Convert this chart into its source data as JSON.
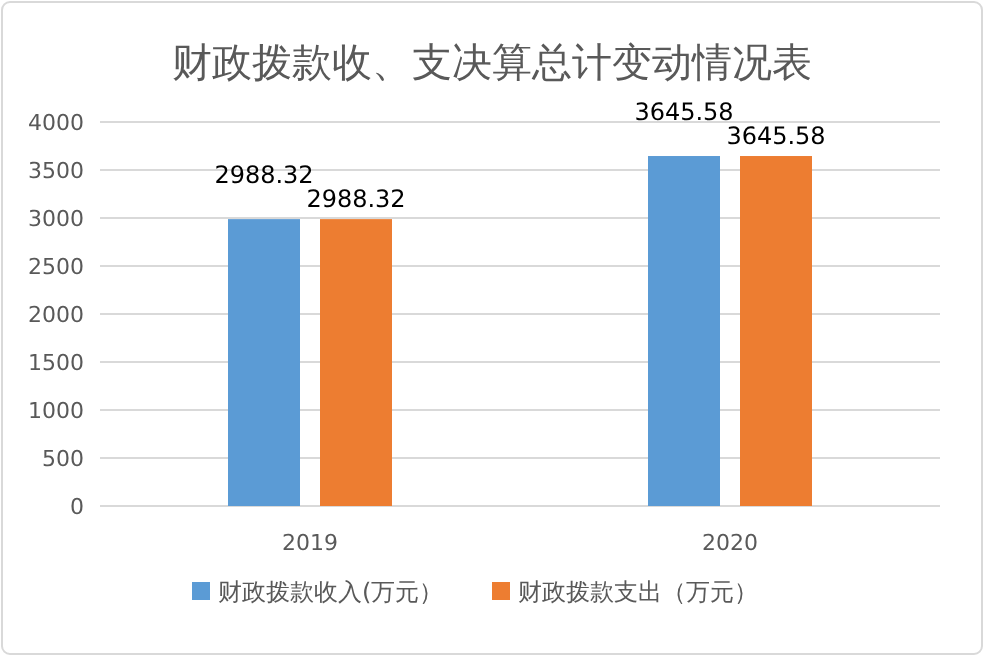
{
  "chart_data": {
    "type": "bar",
    "title": "财政拨款收、支决算总计变动情况表",
    "categories": [
      "2019",
      "2020"
    ],
    "series": [
      {
        "name": "财政拨款收入(万元）",
        "color": "#5b9bd5",
        "values": [
          2988.32,
          3645.58
        ]
      },
      {
        "name": "财政拨款支出（万元）",
        "color": "#ed7d31",
        "values": [
          2988.32,
          3645.58
        ]
      }
    ],
    "ylim": [
      0,
      4000
    ],
    "yticks": [
      0,
      500,
      1000,
      1500,
      2000,
      2500,
      3000,
      3500,
      4000
    ],
    "grid": "y",
    "legend": "bottom",
    "data_labels": true
  }
}
